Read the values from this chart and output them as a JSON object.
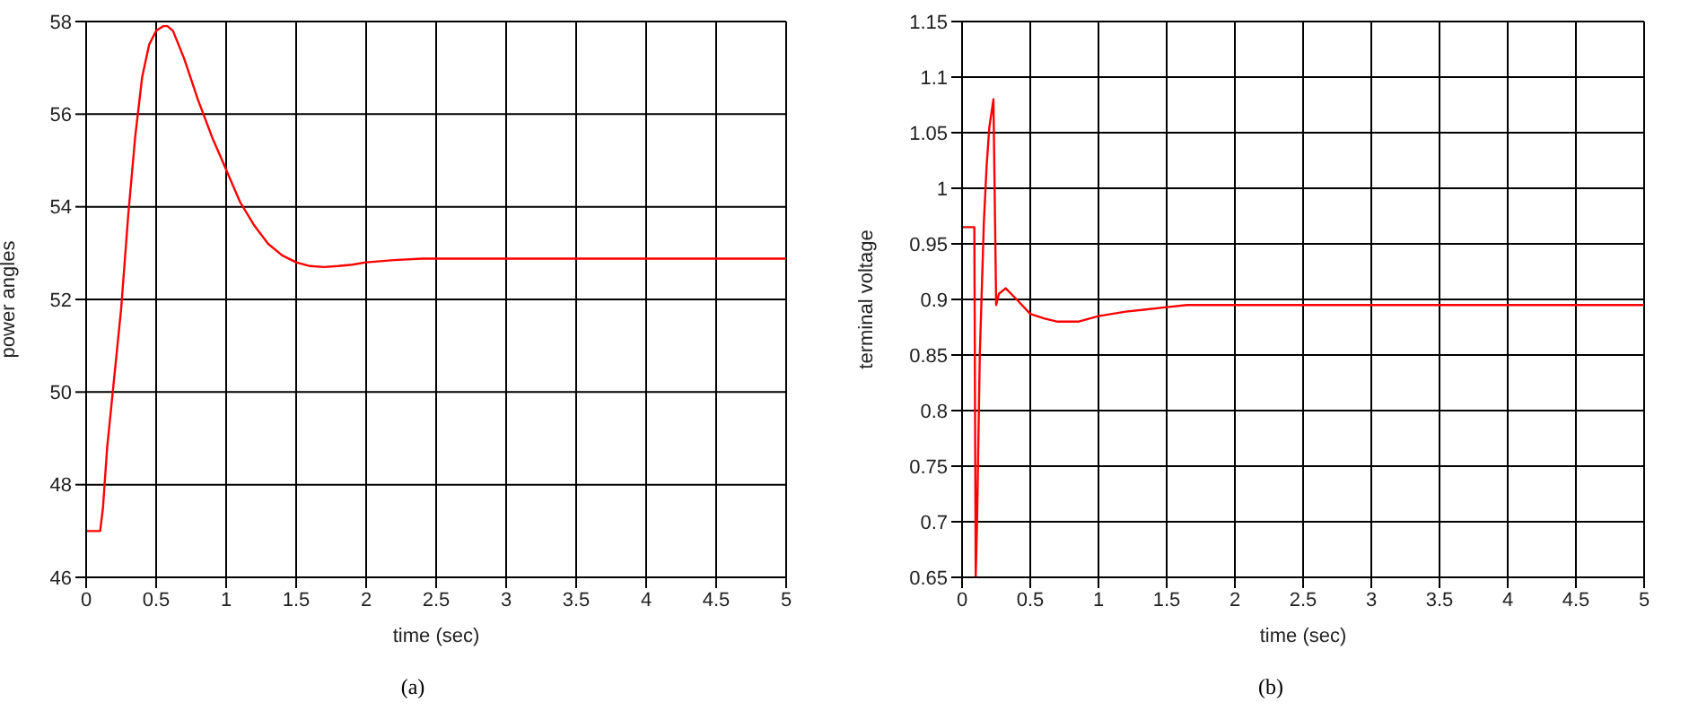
{
  "chart_data": [
    {
      "type": "line",
      "xlabel": "time (sec)",
      "ylabel": "power angles",
      "annotations": [
        "(a)"
      ],
      "grid": true,
      "legend": false,
      "x": [
        0,
        0.1,
        0.12,
        0.15,
        0.2,
        0.25,
        0.3,
        0.35,
        0.4,
        0.45,
        0.5,
        0.55,
        0.58,
        0.62,
        0.7,
        0.8,
        0.9,
        1.0,
        1.1,
        1.2,
        1.3,
        1.4,
        1.5,
        1.6,
        1.7,
        1.8,
        1.9,
        2.0,
        2.2,
        2.4,
        3,
        5
      ],
      "series": [
        {
          "color": "#ff0000",
          "values": [
            47,
            47,
            47.5,
            48.8,
            50.3,
            51.8,
            53.8,
            55.5,
            56.8,
            57.5,
            57.8,
            57.9,
            57.9,
            57.8,
            57.2,
            56.3,
            55.5,
            54.8,
            54.1,
            53.6,
            53.2,
            52.95,
            52.8,
            52.72,
            52.7,
            52.72,
            52.75,
            52.8,
            52.85,
            52.88,
            52.88,
            52.88
          ]
        }
      ],
      "xlim": [
        0,
        5
      ],
      "xticks": [
        0,
        0.5,
        1,
        1.5,
        2,
        2.5,
        3,
        3.5,
        4,
        4.5,
        5
      ],
      "ylim": [
        46,
        58
      ],
      "yticks": [
        46,
        48,
        50,
        52,
        54,
        56,
        58
      ]
    },
    {
      "type": "line",
      "xlabel": "time (sec)",
      "ylabel": "terminal voltage",
      "annotations": [
        "(b)"
      ],
      "grid": true,
      "legend": false,
      "x": [
        0,
        0.09,
        0.1,
        0.11,
        0.13,
        0.16,
        0.18,
        0.2,
        0.23,
        0.25,
        0.27,
        0.32,
        0.4,
        0.5,
        0.6,
        0.7,
        0.85,
        1.0,
        1.2,
        1.5,
        1.65,
        5
      ],
      "series": [
        {
          "color": "#ff0000",
          "values": [
            0.965,
            0.965,
            0.65,
            0.7,
            0.85,
            0.97,
            1.02,
            1.055,
            1.08,
            0.895,
            0.905,
            0.91,
            0.9,
            0.887,
            0.883,
            0.88,
            0.88,
            0.885,
            0.889,
            0.893,
            0.895,
            0.895
          ]
        }
      ],
      "xlim": [
        0,
        5
      ],
      "xticks": [
        0,
        0.5,
        1,
        1.5,
        2,
        2.5,
        3,
        3.5,
        4,
        4.5,
        5
      ],
      "ylim": [
        0.65,
        1.15
      ],
      "yticks": [
        0.65,
        0.7,
        0.75,
        0.8,
        0.85,
        0.9,
        0.95,
        1,
        1.05,
        1.1,
        1.15
      ]
    }
  ]
}
